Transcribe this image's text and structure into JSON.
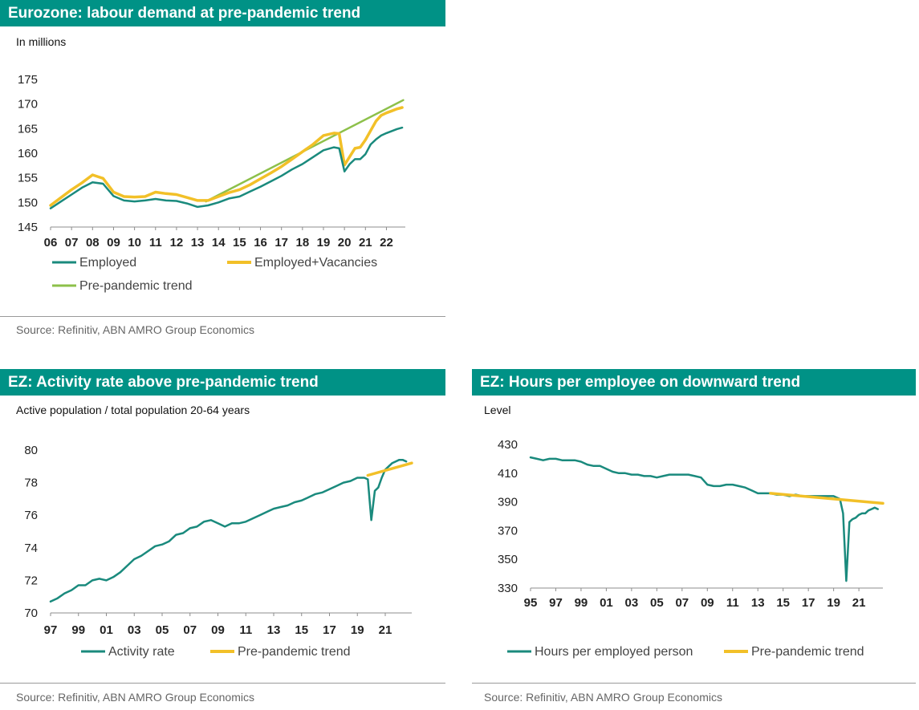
{
  "panels": [
    {
      "title": "Eurozone: labour demand at pre-pandemic trend",
      "subtitle": "In millions",
      "source": "Source: Refinitiv, ABN AMRO Group Economics"
    },
    {
      "title": "EZ: Activity rate above pre-pandemic trend",
      "subtitle": "Active population / total population 20-64 years",
      "source": "Source: Refinitiv, ABN AMRO Group Economics"
    },
    {
      "title": "EZ: Hours per employee on downward trend",
      "subtitle": "Level",
      "source": "Source: Refinitiv, ABN AMRO Group Economics"
    }
  ],
  "colors": {
    "title_bg": "#009286",
    "teal": "#1a8a7d",
    "yellow": "#f2c028",
    "green": "#8dc04a"
  },
  "chart_data": [
    {
      "type": "line",
      "title": "Eurozone: labour demand at pre-pandemic trend",
      "ylabel": "In millions",
      "xlim": [
        2006,
        2022.9
      ],
      "ylim": [
        145,
        175
      ],
      "yticks": [
        145,
        150,
        155,
        160,
        165,
        170,
        175
      ],
      "xtick_labels": [
        "06",
        "07",
        "08",
        "09",
        "10",
        "11",
        "12",
        "13",
        "14",
        "15",
        "16",
        "17",
        "18",
        "19",
        "20",
        "21",
        "22"
      ],
      "grid": false,
      "legend": "bottom",
      "series": [
        {
          "name": "Employed",
          "color": "#1a8a7d",
          "x": [
            2006,
            2006.5,
            2007,
            2007.5,
            2008,
            2008.5,
            2009,
            2009.5,
            2010,
            2010.5,
            2011,
            2011.5,
            2012,
            2012.5,
            2013,
            2013.5,
            2014,
            2014.5,
            2015,
            2015.5,
            2016,
            2016.5,
            2017,
            2017.5,
            2018,
            2018.5,
            2019,
            2019.5,
            2019.75,
            2020,
            2020.25,
            2020.5,
            2020.75,
            2021,
            2021.25,
            2021.5,
            2021.75,
            2022,
            2022.25,
            2022.5,
            2022.75
          ],
          "y": [
            148.8,
            150.2,
            151.6,
            153.0,
            154.1,
            153.8,
            151.3,
            150.4,
            150.2,
            150.4,
            150.7,
            150.4,
            150.3,
            149.8,
            149.1,
            149.4,
            150.0,
            150.8,
            151.2,
            152.2,
            153.2,
            154.3,
            155.4,
            156.7,
            157.8,
            159.2,
            160.6,
            161.2,
            161.0,
            156.3,
            157.8,
            158.8,
            158.8,
            159.8,
            161.8,
            162.8,
            163.6,
            164.1,
            164.5,
            164.9,
            165.2
          ]
        },
        {
          "name": "Employed+Vacancies",
          "color": "#f2c028",
          "x": [
            2006,
            2006.5,
            2007,
            2007.5,
            2008,
            2008.5,
            2009,
            2009.5,
            2010,
            2010.5,
            2011,
            2011.5,
            2012,
            2012.5,
            2013,
            2013.5,
            2014,
            2014.5,
            2015,
            2015.5,
            2016,
            2016.5,
            2017,
            2017.5,
            2018,
            2018.5,
            2019,
            2019.5,
            2019.75,
            2020,
            2020.25,
            2020.5,
            2020.75,
            2021,
            2021.25,
            2021.5,
            2021.75,
            2022,
            2022.25,
            2022.5,
            2022.75
          ],
          "y": [
            149.4,
            151.0,
            152.6,
            154.0,
            155.6,
            154.9,
            152.1,
            151.2,
            151.1,
            151.2,
            152.1,
            151.8,
            151.6,
            151.0,
            150.4,
            150.4,
            151.2,
            152.0,
            152.6,
            153.6,
            154.8,
            156.0,
            157.3,
            158.8,
            160.3,
            161.8,
            163.6,
            164.1,
            164.0,
            157.6,
            159.3,
            161.0,
            161.2,
            162.7,
            164.6,
            166.5,
            167.7,
            168.2,
            168.6,
            169.0,
            169.3
          ]
        },
        {
          "name": "Pre-pandemic trend",
          "color": "#8dc04a",
          "x": [
            2013.4,
            2022.8
          ],
          "y": [
            150.2,
            170.8
          ]
        }
      ]
    },
    {
      "type": "line",
      "title": "EZ: Activity rate above pre-pandemic trend",
      "ylabel": "Active population / total population 20-64 years",
      "xlim": [
        1997,
        2022.9
      ],
      "ylim": [
        70,
        80
      ],
      "yticks": [
        70,
        72,
        74,
        76,
        78,
        80
      ],
      "xtick_labels": [
        "97",
        "99",
        "01",
        "03",
        "05",
        "07",
        "09",
        "11",
        "13",
        "15",
        "17",
        "19",
        "21"
      ],
      "grid": false,
      "legend": "bottom",
      "series": [
        {
          "name": "Activity rate",
          "color": "#1a8a7d",
          "x": [
            1997,
            1997.5,
            1998,
            1998.5,
            1999,
            1999.5,
            2000,
            2000.5,
            2001,
            2001.5,
            2002,
            2002.5,
            2003,
            2003.5,
            2004,
            2004.5,
            2005,
            2005.5,
            2006,
            2006.5,
            2007,
            2007.5,
            2008,
            2008.5,
            2009,
            2009.5,
            2010,
            2010.5,
            2011,
            2011.5,
            2012,
            2012.5,
            2013,
            2013.5,
            2014,
            2014.5,
            2015,
            2015.5,
            2016,
            2016.5,
            2017,
            2017.5,
            2018,
            2018.5,
            2019,
            2019.5,
            2019.75,
            2020,
            2020.25,
            2020.5,
            2020.75,
            2021,
            2021.25,
            2021.5,
            2021.75,
            2022,
            2022.25,
            2022.5
          ],
          "y": [
            70.7,
            70.9,
            71.2,
            71.4,
            71.7,
            71.7,
            72.0,
            72.1,
            72.0,
            72.2,
            72.5,
            72.9,
            73.3,
            73.5,
            73.8,
            74.1,
            74.2,
            74.4,
            74.8,
            74.9,
            75.2,
            75.3,
            75.6,
            75.7,
            75.5,
            75.3,
            75.5,
            75.5,
            75.6,
            75.8,
            76.0,
            76.2,
            76.4,
            76.5,
            76.6,
            76.8,
            76.9,
            77.1,
            77.3,
            77.4,
            77.6,
            77.8,
            78.0,
            78.1,
            78.3,
            78.3,
            78.2,
            75.7,
            77.5,
            77.7,
            78.3,
            78.8,
            79.0,
            79.2,
            79.3,
            79.4,
            79.4,
            79.3
          ]
        },
        {
          "name": "Pre-pandemic trend",
          "color": "#f2c028",
          "x": [
            2019.75,
            2022.9
          ],
          "y": [
            78.45,
            79.2
          ]
        }
      ]
    },
    {
      "type": "line",
      "title": "EZ: Hours per employee on downward trend",
      "ylabel": "Level",
      "xlim": [
        1995,
        2022.9
      ],
      "ylim": [
        330,
        430
      ],
      "yticks": [
        330,
        350,
        370,
        390,
        410,
        430
      ],
      "xtick_labels": [
        "95",
        "97",
        "99",
        "01",
        "03",
        "05",
        "07",
        "09",
        "11",
        "13",
        "15",
        "17",
        "19",
        "21"
      ],
      "grid": false,
      "legend": "bottom",
      "series": [
        {
          "name": "Hours per employed person",
          "color": "#1a8a7d",
          "x": [
            1995,
            1995.5,
            1996,
            1996.5,
            1997,
            1997.5,
            1998,
            1998.5,
            1999,
            1999.5,
            2000,
            2000.5,
            2001,
            2001.5,
            2002,
            2002.5,
            2003,
            2003.5,
            2004,
            2004.5,
            2005,
            2005.5,
            2006,
            2006.5,
            2007,
            2007.5,
            2008,
            2008.5,
            2009,
            2009.5,
            2010,
            2010.5,
            2011,
            2011.5,
            2012,
            2012.5,
            2013,
            2013.5,
            2014,
            2014.5,
            2015,
            2015.5,
            2016,
            2016.5,
            2017,
            2017.5,
            2018,
            2018.5,
            2019,
            2019.5,
            2019.75,
            2020,
            2020.25,
            2020.5,
            2020.75,
            2021,
            2021.25,
            2021.5,
            2021.75,
            2022,
            2022.25,
            2022.5
          ],
          "y": [
            421,
            420,
            419,
            420,
            420,
            419,
            419,
            419,
            418,
            416,
            415,
            415,
            413,
            411,
            410,
            410,
            409,
            409,
            408,
            408,
            407,
            408,
            409,
            409,
            409,
            409,
            408,
            407,
            402,
            401,
            401,
            402,
            402,
            401,
            400,
            398,
            396,
            396,
            396,
            395,
            395,
            394,
            395,
            394,
            394,
            394,
            394,
            394,
            394,
            392,
            382,
            335,
            376,
            378,
            379,
            381,
            382,
            382,
            384,
            385,
            386,
            385
          ]
        },
        {
          "name": "Pre-pandemic trend",
          "color": "#f2c028",
          "x": [
            2014,
            2022.9
          ],
          "y": [
            396,
            389
          ]
        }
      ]
    }
  ]
}
